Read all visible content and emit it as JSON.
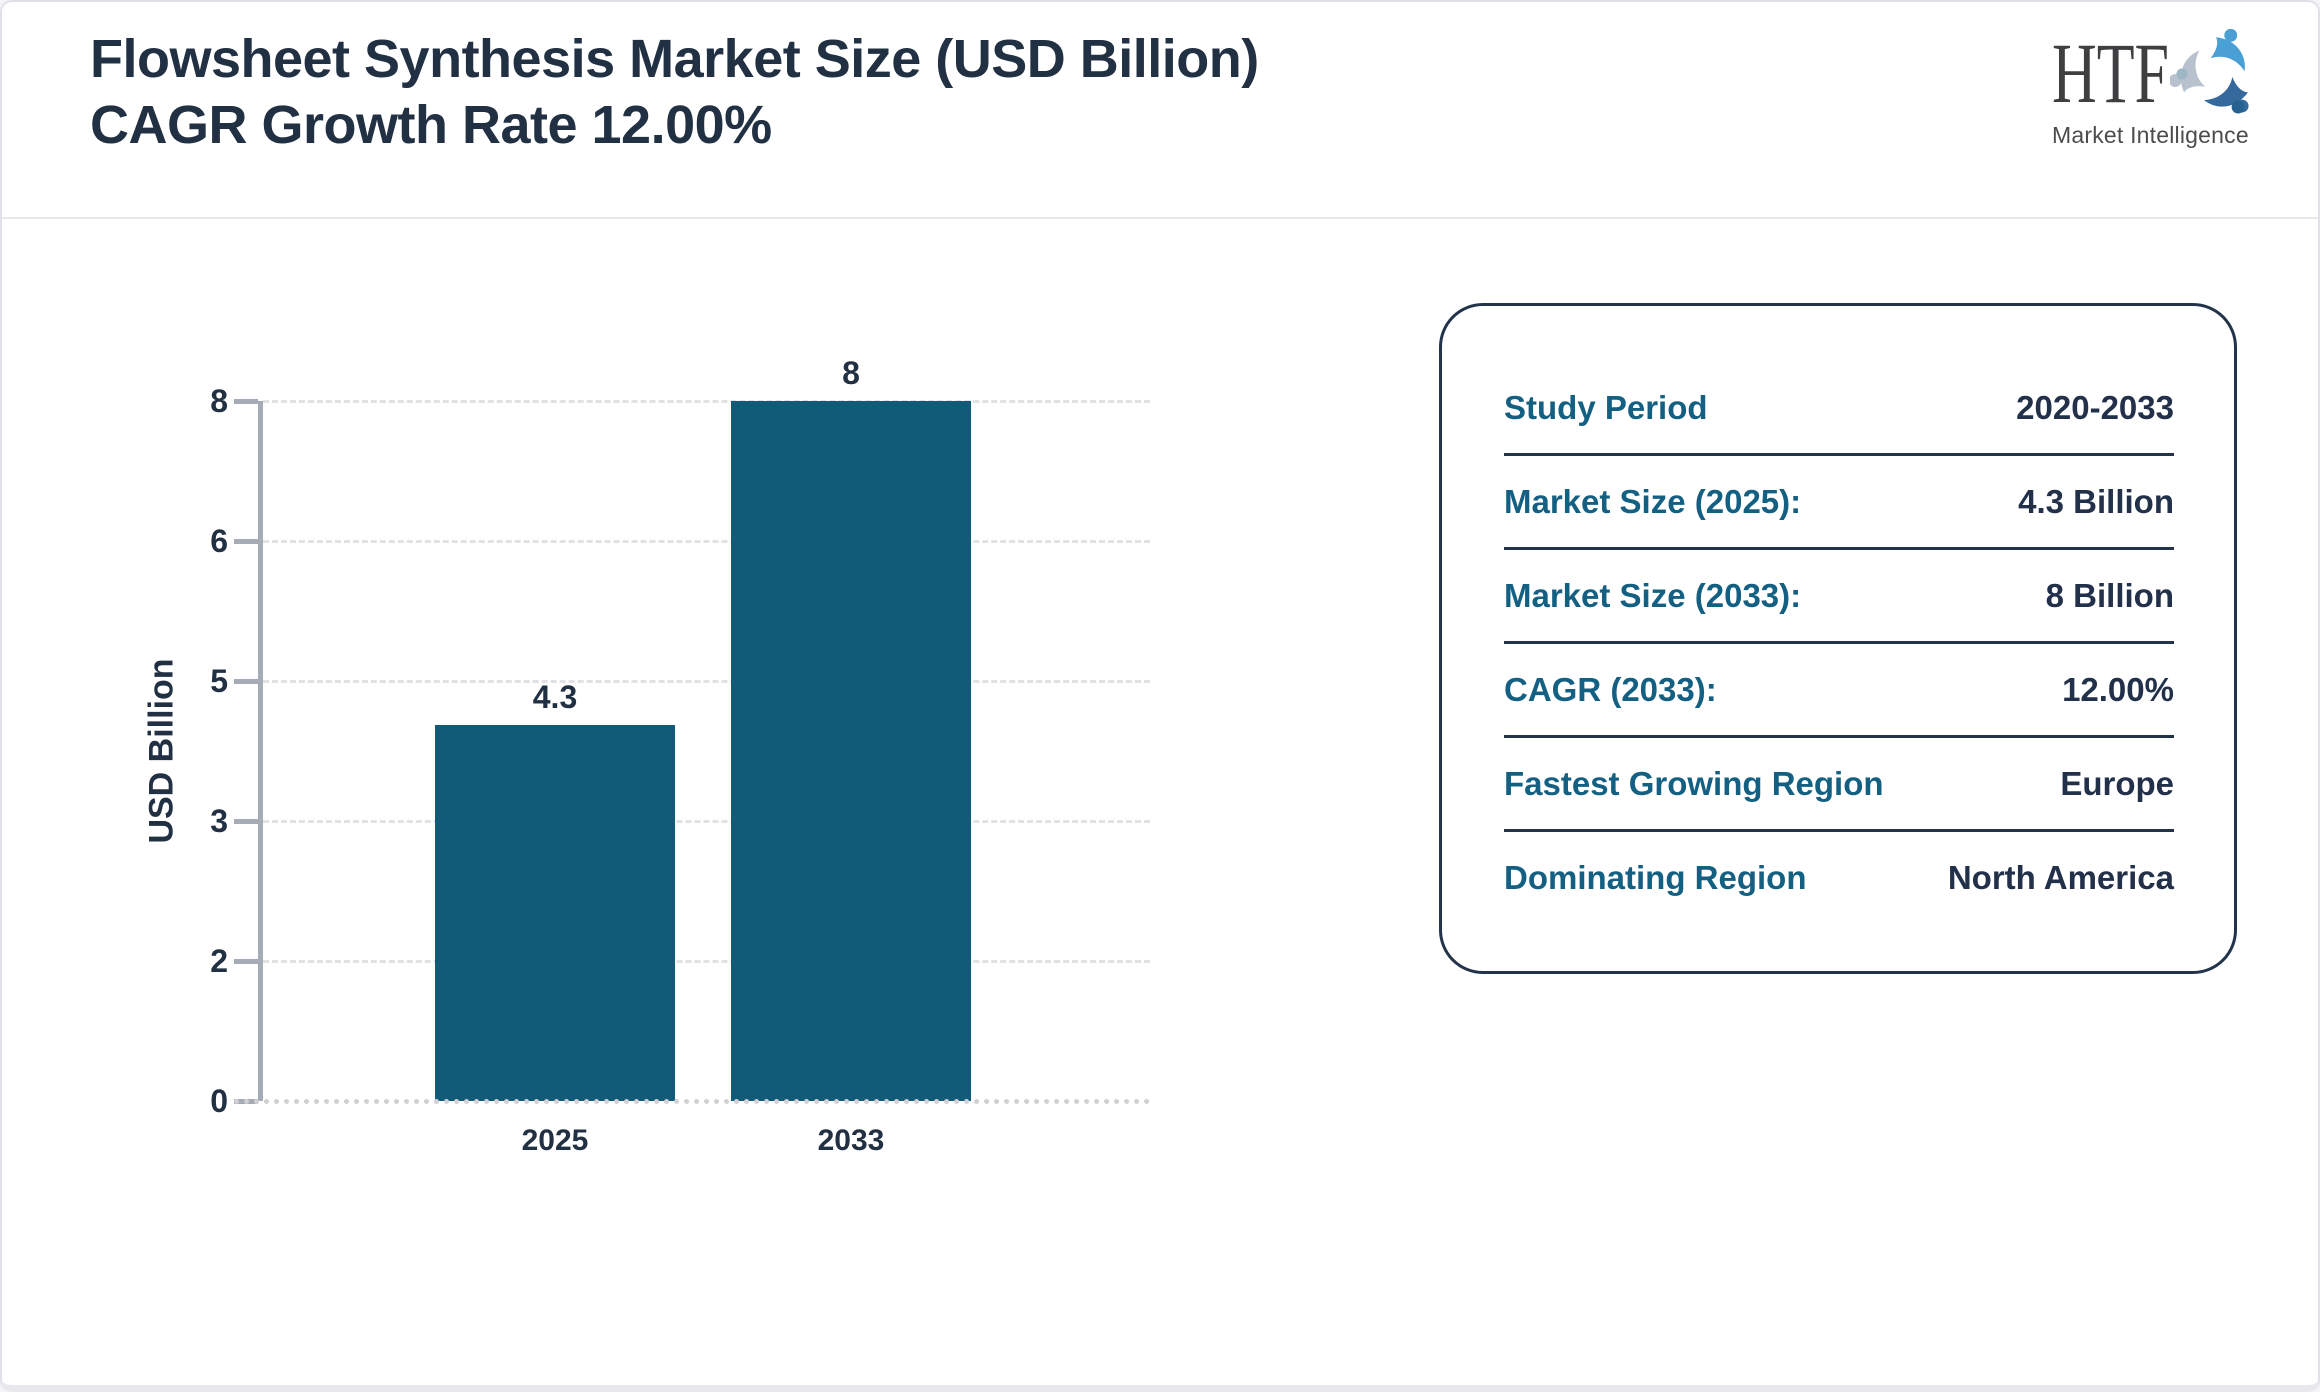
{
  "header": {
    "title_line1": "Flowsheet Synthesis Market Size (USD Billion)",
    "title_line2": "CAGR Growth Rate 12.00%",
    "logo": {
      "text": "HTF",
      "subtext": "Market Intelligence",
      "icon": "htf-swirl-people-icon"
    }
  },
  "chart_data": {
    "type": "bar",
    "title": "Flowsheet Synthesis Market Size (USD Billion) CAGR Growth Rate 12.00%",
    "categories": [
      "2025",
      "2033"
    ],
    "values": [
      4.3,
      8
    ],
    "bar_labels": [
      "4.3",
      "8"
    ],
    "xlabel": "",
    "ylabel": "USD Billion",
    "ylim": [
      0,
      8
    ],
    "ytick_values": [
      0,
      1.6,
      3.2,
      4.8,
      6.4,
      8
    ],
    "ytick_labels": [
      "0",
      "2",
      "3",
      "5",
      "6",
      "8"
    ],
    "grid": "horizontal-dashed",
    "legend_position": "none",
    "bar_color": "#115a78"
  },
  "info_panel": {
    "rows": [
      {
        "label": "Study Period",
        "value": "2020-2033"
      },
      {
        "label": "Market Size (2025):",
        "value": "4.3 Billion"
      },
      {
        "label": "Market Size (2033):",
        "value": "8 Billion"
      },
      {
        "label": "CAGR (2033):",
        "value": "12.00%"
      },
      {
        "label": "Fastest Growing Region",
        "value": "Europe"
      },
      {
        "label": "Dominating Region",
        "value": "North America"
      }
    ]
  },
  "colors": {
    "bar_teal": "#115a78",
    "label_teal": "#136083",
    "navy_text": "#223043",
    "axis_gray": "#a6acb6",
    "grid_gray": "#e2e2e6",
    "panel_border": "#22334a"
  }
}
